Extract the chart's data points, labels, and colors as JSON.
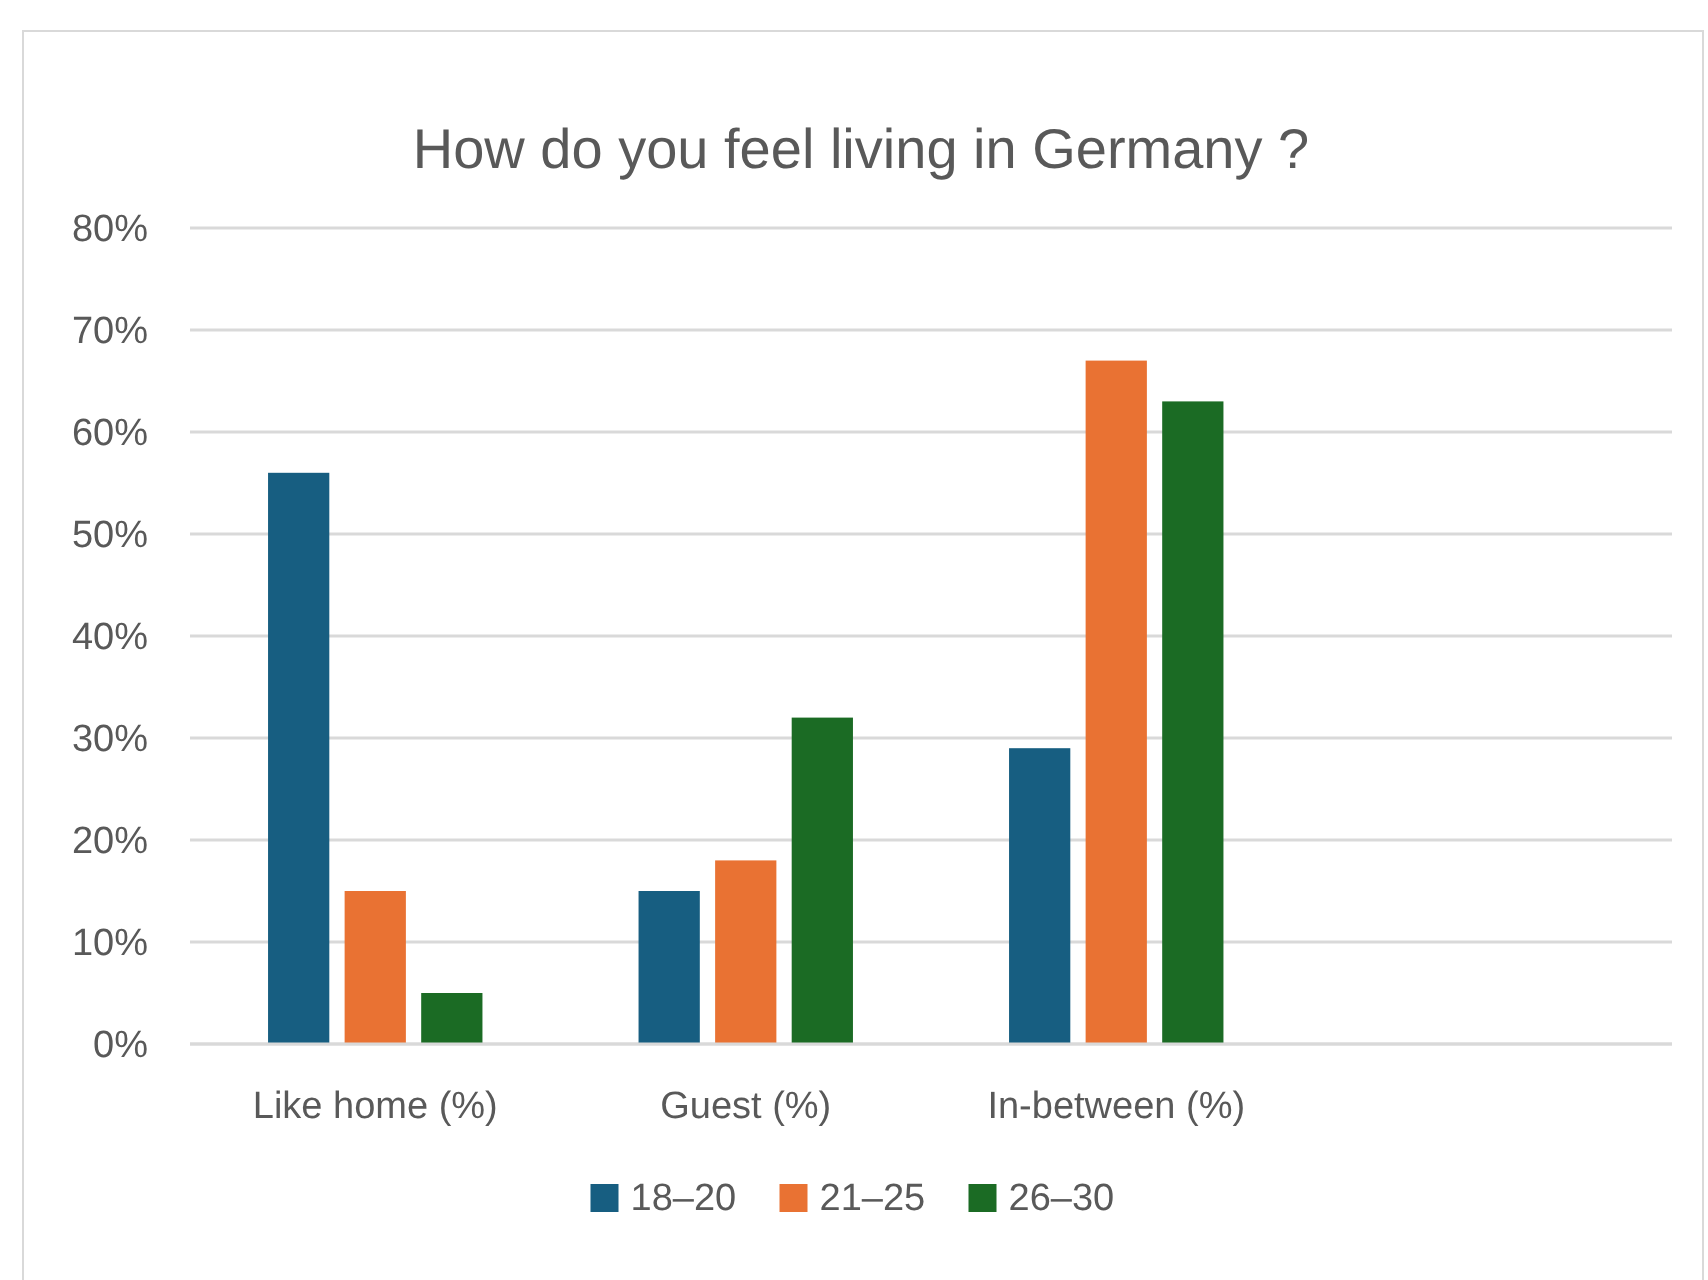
{
  "chart_data": {
    "type": "bar",
    "title": "How do you feel living in Germany ?",
    "categories": [
      "Like home (%)",
      "Guest (%)",
      "In-between (%)",
      null
    ],
    "series": [
      {
        "name": "18–20",
        "color": "#175e81",
        "values": [
          56,
          15,
          29,
          null
        ]
      },
      {
        "name": "21–25",
        "color": "#e97233",
        "values": [
          15,
          18,
          67,
          null
        ]
      },
      {
        "name": "26–30",
        "color": "#1b6b24",
        "values": [
          5,
          32,
          63,
          null
        ]
      }
    ],
    "ylim": [
      0,
      80
    ],
    "yticks": [
      {
        "value": 0,
        "label": "0%"
      },
      {
        "value": 10,
        "label": "10%"
      },
      {
        "value": 20,
        "label": "20%"
      },
      {
        "value": 30,
        "label": "30%"
      },
      {
        "value": 40,
        "label": "40%"
      },
      {
        "value": 50,
        "label": "50%"
      },
      {
        "value": 60,
        "label": "60%"
      },
      {
        "value": 70,
        "label": "70%"
      },
      {
        "value": 80,
        "label": "80%"
      }
    ],
    "grid": "y",
    "legend": "bottom"
  }
}
